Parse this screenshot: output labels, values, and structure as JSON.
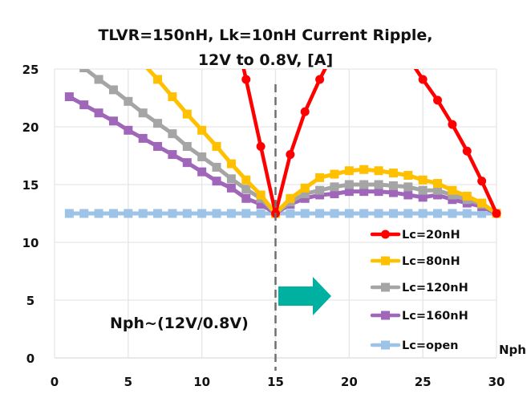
{
  "chart_data": {
    "type": "line",
    "title": [
      "TLVR=150nH, Lk=10nH Current Ripple,",
      "12V to 0.8V, [A]"
    ],
    "xlabel": "Nph",
    "ylabel": "",
    "xlim": [
      0,
      30
    ],
    "ylim": [
      0,
      25
    ],
    "xticks": [
      0,
      5,
      10,
      15,
      20,
      25,
      30
    ],
    "yticks": [
      0,
      5,
      10,
      15,
      20,
      25
    ],
    "grid": true,
    "legend_position": "bottom-right",
    "series": [
      {
        "name": "Lc=20nH",
        "color": "#FF0000",
        "marker": "circle",
        "x": [
          12,
          13,
          14,
          15,
          16,
          17,
          18,
          19,
          24,
          25,
          26,
          27,
          28,
          29,
          30
        ],
        "y": [
          29.9,
          24.1,
          18.3,
          12.5,
          17.6,
          21.3,
          24.1,
          26.6,
          26.0,
          24.1,
          22.3,
          20.2,
          17.9,
          15.3,
          12.5
        ]
      },
      {
        "name": "Lc=80nH",
        "color": "#FFC000",
        "marker": "square",
        "x": [
          6,
          7,
          8,
          9,
          10,
          11,
          12,
          13,
          14,
          15,
          16,
          17,
          18,
          19,
          20,
          21,
          22,
          23,
          24,
          25,
          26,
          27,
          28,
          29,
          30
        ],
        "y": [
          25.5,
          24.1,
          22.6,
          21.1,
          19.7,
          18.3,
          16.8,
          15.4,
          14.1,
          12.5,
          13.8,
          14.7,
          15.6,
          15.9,
          16.2,
          16.3,
          16.2,
          16.0,
          15.8,
          15.4,
          15.1,
          14.5,
          14.0,
          13.4,
          12.5
        ]
      },
      {
        "name": "Lc=120nH",
        "color": "#A5A5A5",
        "marker": "square",
        "x": [
          2,
          3,
          4,
          5,
          6,
          7,
          8,
          9,
          10,
          11,
          12,
          13,
          14,
          15,
          16,
          17,
          18,
          19,
          20,
          21,
          22,
          23,
          24,
          25,
          26,
          27,
          28,
          29,
          30
        ],
        "y": [
          25.1,
          24.1,
          23.2,
          22.2,
          21.2,
          20.3,
          19.4,
          18.3,
          17.4,
          16.5,
          15.5,
          14.6,
          13.8,
          12.5,
          13.5,
          14.2,
          14.5,
          14.8,
          15.0,
          15.0,
          15.0,
          14.9,
          14.8,
          14.5,
          14.5,
          14.1,
          13.7,
          13.3,
          12.5
        ]
      },
      {
        "name": "Lc=160nH",
        "color": "#A066BA",
        "marker": "square",
        "x": [
          1,
          2,
          3,
          4,
          5,
          6,
          7,
          8,
          9,
          10,
          11,
          12,
          13,
          14,
          15,
          16,
          17,
          18,
          19,
          20,
          21,
          22,
          23,
          24,
          25,
          26,
          27,
          28,
          29,
          30
        ],
        "y": [
          22.6,
          21.9,
          21.2,
          20.5,
          19.7,
          19.0,
          18.3,
          17.6,
          16.9,
          16.1,
          15.3,
          14.7,
          13.8,
          13.3,
          12.5,
          13.3,
          13.8,
          14.1,
          14.2,
          14.4,
          14.4,
          14.4,
          14.3,
          14.1,
          13.9,
          14.1,
          13.7,
          13.4,
          13.1,
          12.5
        ]
      },
      {
        "name": "Lc=open",
        "color": "#9DC3E6",
        "marker": "square",
        "x": [
          1,
          2,
          3,
          4,
          5,
          6,
          7,
          8,
          9,
          10,
          11,
          12,
          13,
          14,
          15,
          16,
          17,
          18,
          19,
          20,
          21,
          22,
          23,
          24,
          25,
          26,
          27,
          28,
          29,
          30
        ],
        "y": [
          12.5,
          12.5,
          12.5,
          12.5,
          12.5,
          12.5,
          12.5,
          12.5,
          12.5,
          12.5,
          12.5,
          12.5,
          12.5,
          12.5,
          12.5,
          12.5,
          12.5,
          12.5,
          12.5,
          12.5,
          12.5,
          12.5,
          12.5,
          12.5,
          12.5,
          12.5,
          12.5,
          12.5,
          12.5,
          12.5
        ]
      }
    ],
    "annotations": {
      "vline": {
        "x": 15,
        "style": "dashed",
        "color": "#707070"
      },
      "text": "Nph~(12V/0.8V)",
      "arrow": {
        "direction": "right",
        "color": "#00B0A0"
      }
    }
  }
}
